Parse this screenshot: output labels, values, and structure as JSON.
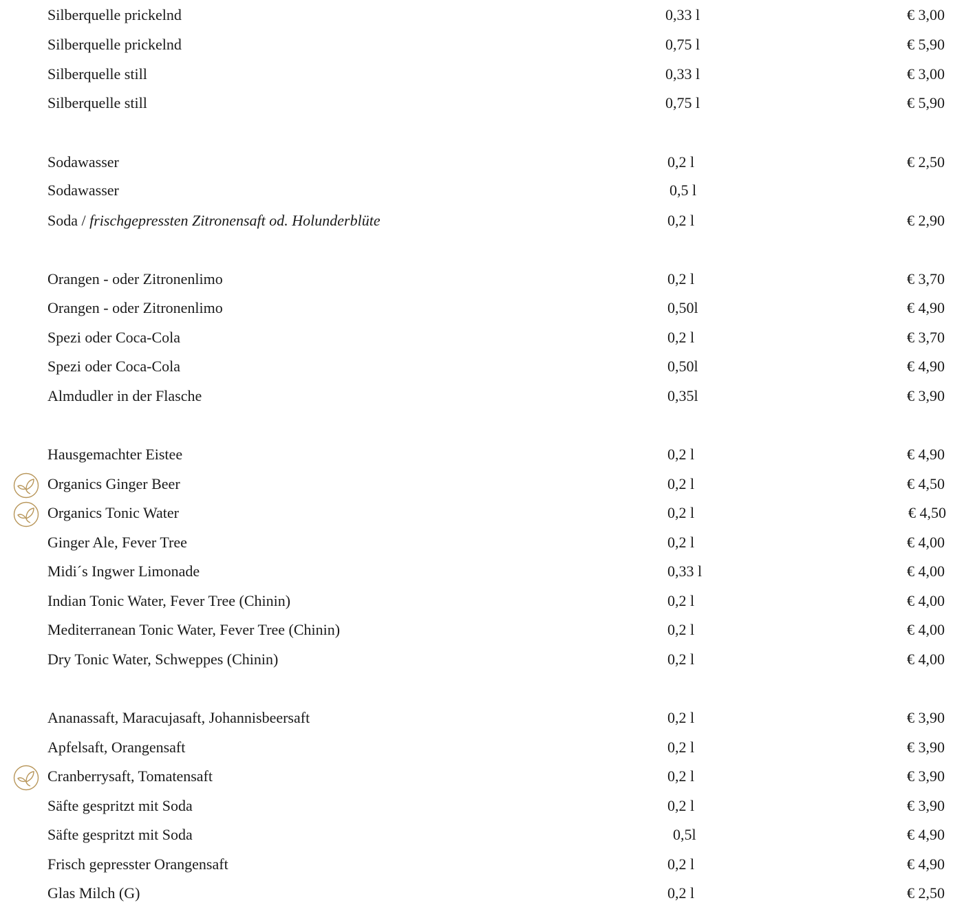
{
  "accent_color": "#b8965a",
  "items": [
    {
      "name": "Silberquelle prickelnd",
      "volume": "0,33 l",
      "price": "€ 3,00",
      "organic": false
    },
    {
      "name": "Silberquelle prickelnd",
      "volume": "0,75 l",
      "price": "€ 5,90",
      "organic": false
    },
    {
      "name": "Silberquelle still",
      "volume": "0,33 l",
      "price": "€ 3,00",
      "organic": false
    },
    {
      "name": "Silberquelle still",
      "volume": "0,75 l",
      "price": "€ 5,90",
      "organic": false
    },
    {
      "name": "Sodawasser",
      "volume": "0,2 l",
      "price": "€ 2,50",
      "organic": false
    },
    {
      "name": "Sodawasser",
      "volume": "0,5 l",
      "price": "",
      "organic": false
    },
    {
      "name": "Soda / ",
      "name_italic": "frischgepressten Zitronensaft od. Holunderblüte",
      "volume": "0,2 l",
      "price": "€ 2,90",
      "organic": false
    },
    {
      "name": "Orangen - oder Zitronenlimo",
      "volume": "0,2 l",
      "price": "€ 3,70",
      "organic": false
    },
    {
      "name": "Orangen - oder Zitronenlimo",
      "volume": "0,50l",
      "price": "€ 4,90",
      "organic": false
    },
    {
      "name": "Spezi oder Coca-Cola",
      "volume": "0,2 l",
      "price": "€ 3,70",
      "organic": false
    },
    {
      "name": "Spezi oder Coca-Cola",
      "volume": "0,50l",
      "price": "€ 4,90",
      "organic": false
    },
    {
      "name": "Almdudler in der Flasche",
      "volume": "0,35l",
      "price": "€ 3,90",
      "organic": false
    },
    {
      "name": "Hausgemachter Eistee",
      "volume": "0,2 l",
      "price": "€ 4,90",
      "organic": false
    },
    {
      "name": "Organics Ginger Beer",
      "volume": "0,2 l",
      "price": "€ 4,50",
      "organic": true
    },
    {
      "name": "Organics Tonic Water",
      "volume": "0,2 l",
      "price": "€ 4,50",
      "organic": true
    },
    {
      "name": "Ginger Ale, Fever Tree",
      "volume": "0,2 l",
      "price": "€ 4,00",
      "organic": false
    },
    {
      "name": "Midi´s Ingwer Limonade",
      "volume": "0,33 l",
      "price": "€ 4,00",
      "organic": false
    },
    {
      "name": "Indian Tonic Water, Fever Tree (Chinin)",
      "volume": "0,2 l",
      "price": "€ 4,00",
      "organic": false
    },
    {
      "name": "Mediterranean Tonic Water, Fever Tree (Chinin)",
      "volume": "0,2 l",
      "price": "€ 4,00",
      "organic": false
    },
    {
      "name": "Dry Tonic Water, Schweppes (Chinin)",
      "volume": "0,2 l",
      "price": "€ 4,00",
      "organic": false
    },
    {
      "name": "Ananassaft, Maracujasaft, Johannisbeersaft",
      "volume": "0,2 l",
      "price": "€ 3,90",
      "organic": false
    },
    {
      "name": "Apfelsaft, Orangensaft",
      "volume": "0,2 l",
      "price": "€ 3,90",
      "organic": false
    },
    {
      "name": "Cranberrysaft, Tomatensaft",
      "volume": "0,2 l",
      "price": "€ 3,90",
      "organic": true
    },
    {
      "name": "Säfte gespritzt mit Soda",
      "volume": "0,2 l",
      "price": "€ 3,90",
      "organic": false
    },
    {
      "name": "Säfte gespritzt mit Soda",
      "volume": "0,5l",
      "price": "€ 4,90",
      "organic": false
    },
    {
      "name": "Frisch gepresster Orangensaft",
      "volume": "0,2 l",
      "price": "€ 4,90",
      "organic": false
    },
    {
      "name": "Glas Milch (G)",
      "volume": "0,2 l",
      "price": "€ 2,50",
      "organic": false
    }
  ]
}
